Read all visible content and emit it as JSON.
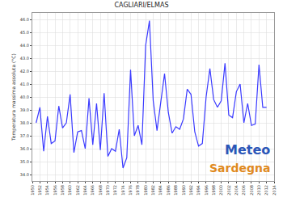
{
  "chart_data": {
    "type": "line",
    "title": "CAGLIARI/ELMAS",
    "y_label": "Temperatura massima assoluta (°C)",
    "x": [
      1951,
      1952,
      1953,
      1954,
      1955,
      1956,
      1957,
      1958,
      1959,
      1960,
      1961,
      1962,
      1963,
      1964,
      1965,
      1966,
      1967,
      1968,
      1969,
      1970,
      1971,
      1972,
      1973,
      1974,
      1975,
      1976,
      1977,
      1978,
      1979,
      1980,
      1981,
      1982,
      1983,
      1984,
      1985,
      1986,
      1987,
      1988,
      1989,
      1990,
      1991,
      1992,
      1993,
      1994,
      1995,
      1996,
      1997,
      1998,
      1999,
      2000,
      2001,
      2002,
      2003,
      2004,
      2005,
      2006,
      2007,
      2008,
      2009,
      2010,
      2011,
      2012
    ],
    "values": [
      38.0,
      39.2,
      35.8,
      38.5,
      36.4,
      36.6,
      39.3,
      37.6,
      38.0,
      40.2,
      35.7,
      37.3,
      37.4,
      36.0,
      39.9,
      36.3,
      39.5,
      35.9,
      40.3,
      35.4,
      36.0,
      35.8,
      37.5,
      34.5,
      35.3,
      42.1,
      37.0,
      37.8,
      36.3,
      44.0,
      45.9,
      39.7,
      37.4,
      39.7,
      41.8,
      38.8,
      37.2,
      37.7,
      37.5,
      38.3,
      40.6,
      40.2,
      37.3,
      36.2,
      36.4,
      40.0,
      42.2,
      39.8,
      39.2,
      39.7,
      42.6,
      38.6,
      38.4,
      40.4,
      41.0,
      38.0,
      39.5,
      37.8,
      37.9,
      42.5,
      39.2,
      39.2
    ],
    "color": "#3a3aff",
    "xlim": [
      1950,
      2014
    ],
    "xticks": [
      1950,
      1952,
      1954,
      1956,
      1958,
      1960,
      1962,
      1964,
      1966,
      1968,
      1970,
      1972,
      1974,
      1976,
      1978,
      1980,
      1982,
      1984,
      1986,
      1988,
      1990,
      1992,
      1994,
      1996,
      1998,
      2000,
      2002,
      2004,
      2006,
      2008,
      2010,
      2012,
      2014
    ],
    "ylim": [
      33.5,
      46.5
    ],
    "yticks": [
      {
        "value": 34,
        "label": "34.0"
      },
      {
        "value": 35,
        "label": "35.0"
      },
      {
        "value": 36,
        "label": "36.0"
      },
      {
        "value": 37,
        "label": "37.0"
      },
      {
        "value": 38,
        "label": "38.0"
      },
      {
        "value": 39,
        "label": "39.0"
      },
      {
        "value": 40,
        "label": "40.0"
      },
      {
        "value": 41,
        "label": "41.0"
      },
      {
        "value": 42,
        "label": "42.0"
      },
      {
        "value": 43,
        "label": "43.0"
      },
      {
        "value": 44,
        "label": "44.0"
      },
      {
        "value": 45,
        "label": "45.0"
      },
      {
        "value": 46,
        "label": "46.0"
      }
    ],
    "grid": true,
    "annotations": [
      "Meteo",
      "Sardegna"
    ]
  }
}
